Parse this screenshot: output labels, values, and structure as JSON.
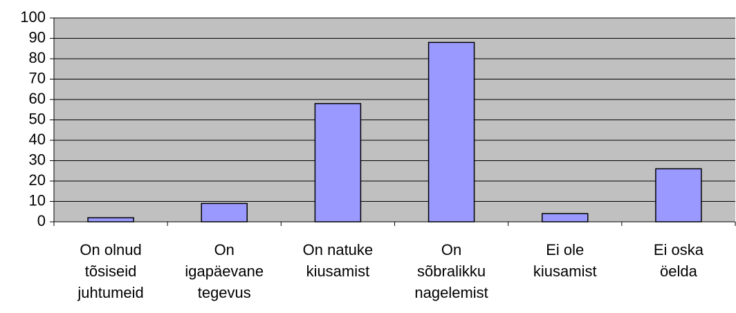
{
  "chart_data": {
    "type": "bar",
    "categories": [
      "On olnud tõsiseid juhtumeid",
      "On igapäevane tegevus",
      "On natuke kiusamist",
      "On sõbralikku nagelemist",
      "Ei ole kiusamist",
      "Ei oska öelda"
    ],
    "values": [
      2,
      9,
      58,
      88,
      4,
      26
    ],
    "color": "#9999ff",
    "plot_background": "#c0c0c0",
    "ylim": [
      0,
      100
    ],
    "yticks": [
      0,
      10,
      20,
      30,
      40,
      50,
      60,
      70,
      80,
      90,
      100
    ],
    "grid": true
  }
}
